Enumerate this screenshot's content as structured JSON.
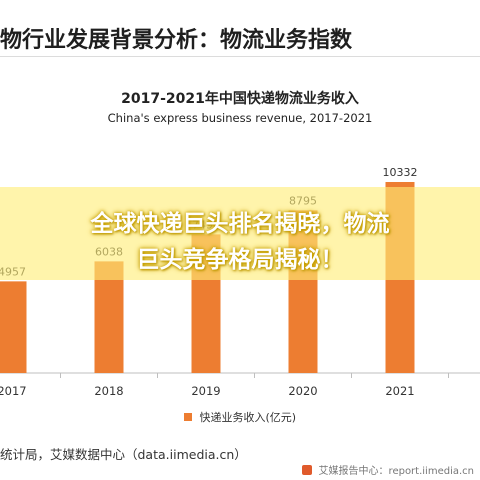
{
  "page": {
    "title": "物行业发展背景分析：物流业务指数",
    "source": "统计局，艾媒数据中心（data.iimedia.cn）",
    "footer": "艾媒报告中心：report.iimedia.cn"
  },
  "colors": {
    "bar": "#ed7d31",
    "banner": "#ffee78",
    "banner_text": "#ffffff"
  },
  "banner": {
    "line1": "全球快递巨头排名揭晓，物流",
    "line2": "巨头竞争格局揭秘！"
  },
  "chart_data": {
    "type": "bar",
    "title": "2017-2021年中国快递物流业务收入",
    "subtitle": "China's express business revenue, 2017-2021",
    "categories": [
      "2017",
      "2018",
      "2019",
      "2020",
      "2021"
    ],
    "series": [
      {
        "name": "快递业务收入(亿元)",
        "values": [
          4957,
          6038,
          7498,
          8795,
          10332
        ]
      }
    ],
    "value_labels": [
      "4957",
      "6038",
      "7498",
      "8795",
      "10332"
    ],
    "legend": "bottom-center",
    "grid": false
  }
}
